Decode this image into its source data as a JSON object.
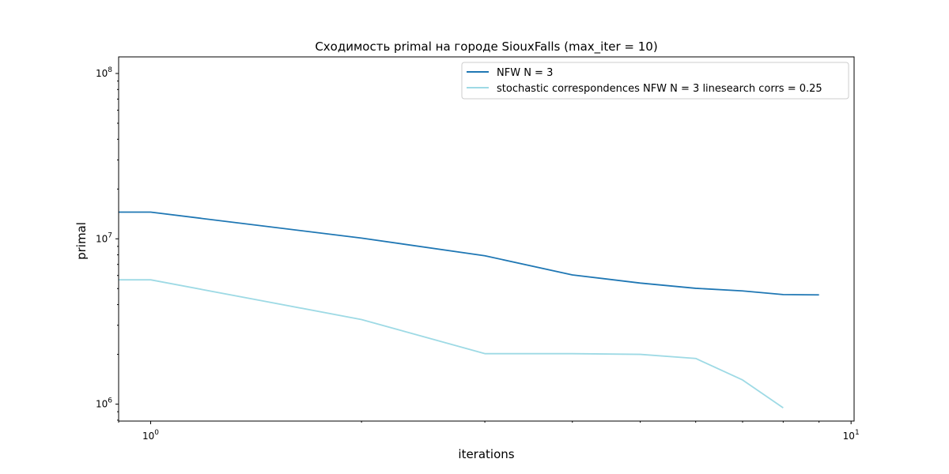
{
  "chart_data": {
    "type": "line",
    "title": "Сходимость primal на городе SiouxFalls  (max_iter = 10)",
    "xlabel": "iterations",
    "ylabel": "primal",
    "xscale": "log",
    "yscale": "log",
    "grid": false,
    "legend_position": "upper right",
    "x_ticks": [
      {
        "base": "10",
        "exp": "0",
        "value": 1
      },
      {
        "base": "10",
        "exp": "1",
        "value": 10
      }
    ],
    "y_ticks": [
      {
        "base": "10",
        "exp": "6",
        "value": 1000000
      },
      {
        "base": "10",
        "exp": "7",
        "value": 10000000
      },
      {
        "base": "10",
        "exp": "8",
        "value": 100000000
      }
    ],
    "series": [
      {
        "name": "NFW N = 3",
        "color": "#1f77b4",
        "x": [
          0.9,
          1,
          2,
          3,
          4,
          5,
          6,
          7,
          8,
          9
        ],
        "y": [
          14500000,
          14500000,
          10100000,
          7900000,
          6050000,
          5400000,
          5020000,
          4840000,
          4600000,
          4580000
        ]
      },
      {
        "name": "stochastic correspondences NFW N = 3 linesearch corrs = 0.25",
        "color": "#9edae5",
        "x": [
          0.9,
          1,
          2,
          3,
          4,
          5,
          6,
          7,
          8
        ],
        "y": [
          5650000,
          5650000,
          3250000,
          2020000,
          2020000,
          2000000,
          1890000,
          1400000,
          950000
        ]
      }
    ]
  }
}
